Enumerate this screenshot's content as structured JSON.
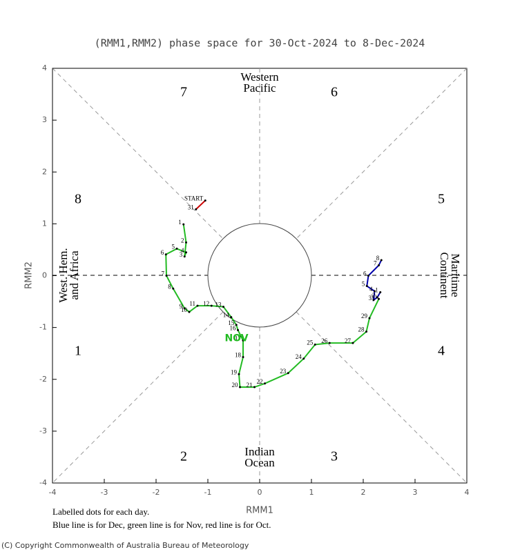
{
  "chart_data": {
    "type": "line",
    "title": "(RMM1,RMM2) phase space for 30-Oct-2024 to  8-Dec-2024",
    "xlabel": "RMM1",
    "ylabel": "RMM2",
    "xlim": [
      -4,
      4
    ],
    "ylim": [
      -4,
      4
    ],
    "xticks": [
      -4,
      -3,
      -2,
      -1,
      0,
      1,
      2,
      3,
      4
    ],
    "yticks": [
      -4,
      -3,
      -2,
      -1,
      0,
      1,
      2,
      3,
      4
    ],
    "phases": [
      "1",
      "2",
      "3",
      "4",
      "5",
      "6",
      "7",
      "8"
    ],
    "regions": [
      [
        "Western",
        "Pacific"
      ],
      [
        "Indian",
        "Ocean"
      ],
      [
        "West. Hem.",
        "and Africa"
      ],
      [
        "Maritime",
        "Continent"
      ]
    ],
    "series": [
      {
        "name": "Oct",
        "color": "#cc0000",
        "x": [
          -1.05,
          -1.23
        ],
        "y": [
          1.45,
          1.28
        ],
        "labels": [
          "START",
          "31"
        ]
      },
      {
        "name": "Nov",
        "color": "#22bb22",
        "month_label": "NOV",
        "x": [
          -1.47,
          -1.42,
          -1.45,
          -1.42,
          -1.6,
          -1.81,
          -1.8,
          -1.67,
          -1.45,
          -1.36,
          -1.2,
          -0.93,
          -0.7,
          -0.55,
          -0.45,
          -0.42,
          -0.32,
          -0.32,
          -0.4,
          -0.38,
          -0.1,
          0.1,
          0.55,
          0.85,
          1.07,
          1.35,
          1.8,
          2.06,
          2.12,
          2.3
        ],
        "y": [
          0.99,
          0.64,
          0.37,
          0.45,
          0.52,
          0.41,
          0.0,
          -0.25,
          -0.63,
          -0.7,
          -0.58,
          -0.58,
          -0.6,
          -0.8,
          -0.95,
          -1.05,
          -1.25,
          -1.57,
          -1.9,
          -2.15,
          -2.15,
          -2.08,
          -1.88,
          -1.6,
          -1.33,
          -1.3,
          -1.3,
          -1.08,
          -0.82,
          -0.45
        ],
        "labels": [
          "1",
          "2",
          "3",
          "4",
          "5",
          "6",
          "7",
          "8",
          "9",
          "10",
          "11",
          "12",
          "13",
          "14",
          "15",
          "16",
          "17",
          "18",
          "19",
          "20",
          "21",
          "22",
          "23",
          "24",
          "25",
          "26",
          "27",
          "28",
          "29",
          "30"
        ]
      },
      {
        "name": "Dec",
        "color": "#0000aa",
        "x": [
          2.33,
          2.27,
          2.2,
          2.22,
          2.07,
          2.1,
          2.3,
          2.35
        ],
        "y": [
          -0.32,
          -0.42,
          -0.47,
          -0.3,
          -0.2,
          0.0,
          0.2,
          0.3
        ],
        "labels": [
          "1",
          "2",
          "3",
          "4",
          "5",
          "6",
          "7",
          "8"
        ]
      }
    ],
    "notes": [
      "Labelled dots for each day.",
      "Blue line is for Dec, green line is for Nov, red line is for Oct."
    ],
    "copyright": "(C) Copyright Commonwealth of Australia Bureau of Meteorology"
  }
}
